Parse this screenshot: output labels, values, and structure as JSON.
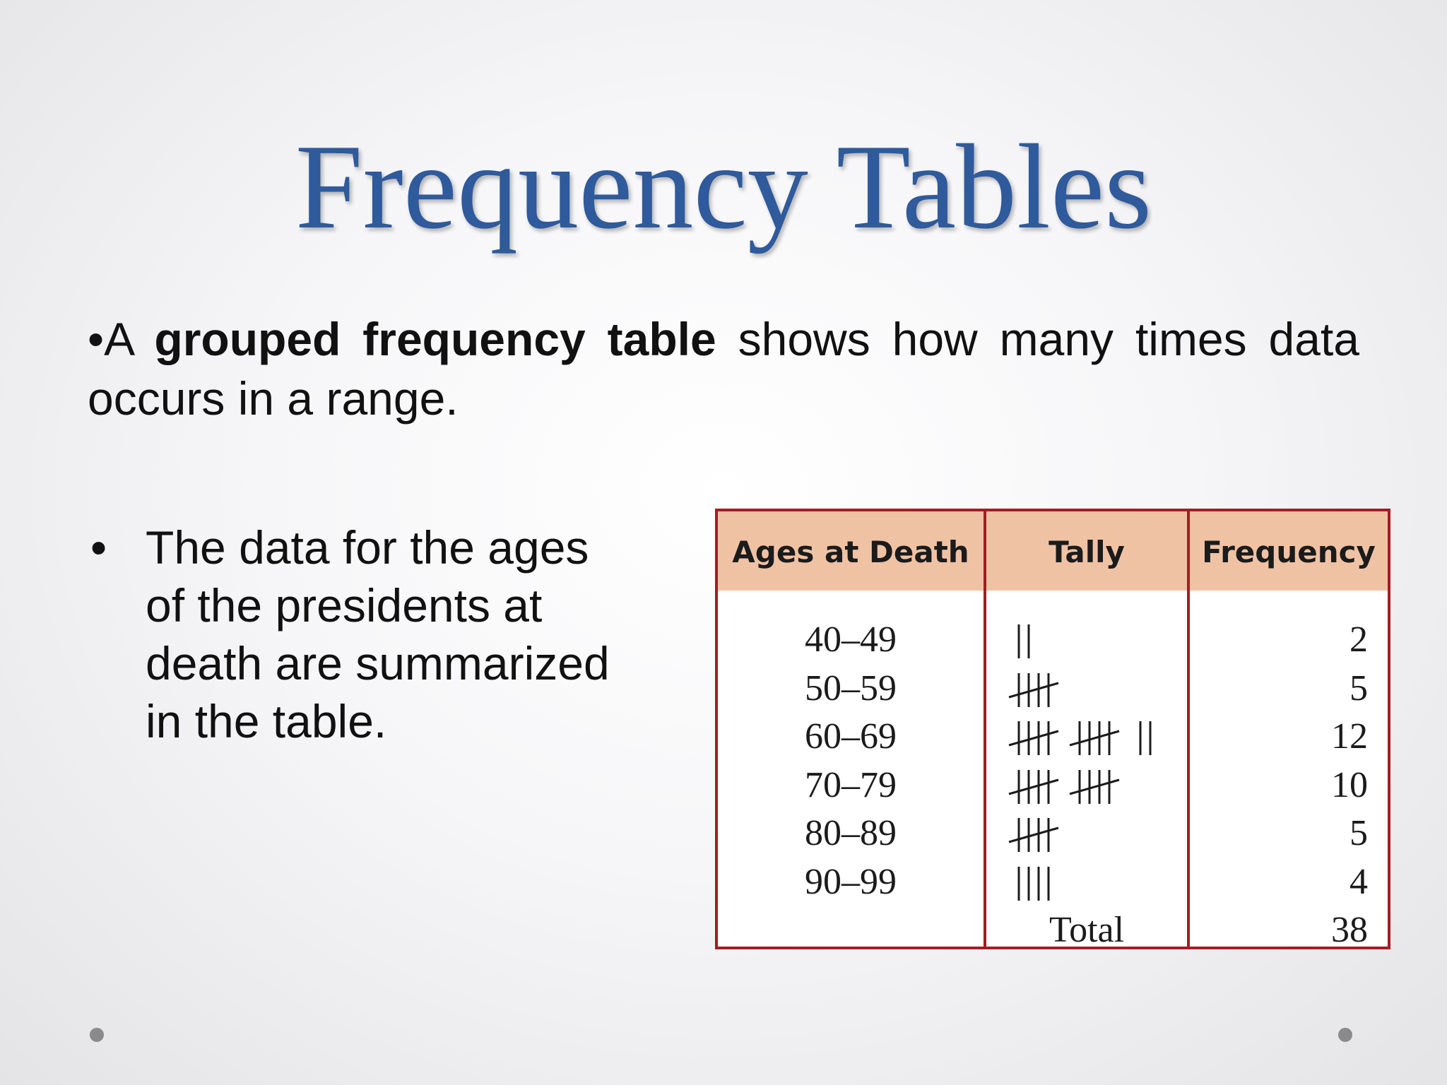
{
  "slide": {
    "title": "Frequency Tables",
    "intro": {
      "bullet": "•",
      "prefix": "A ",
      "term": "grouped frequency table",
      "rest": " shows how many times data occurs in a range."
    },
    "point": {
      "bullet": "•",
      "text": "The data for the ages of the presidents at death are summarized in the table."
    }
  },
  "table": {
    "headers": [
      "Ages at Death",
      "Tally",
      "Frequency"
    ],
    "rows": [
      {
        "range": "40–49",
        "tally": 2,
        "frequency": "2"
      },
      {
        "range": "50–59",
        "tally": 5,
        "frequency": "5"
      },
      {
        "range": "60–69",
        "tally": 12,
        "frequency": "12"
      },
      {
        "range": "70–79",
        "tally": 10,
        "frequency": "10"
      },
      {
        "range": "80–89",
        "tally": 5,
        "frequency": "5"
      },
      {
        "range": "90–99",
        "tally": 4,
        "frequency": "4"
      }
    ],
    "total_label": "Total",
    "total_value": "38"
  },
  "colors": {
    "title": "#2f5a9b",
    "table_border": "#a31d24",
    "header_fill": "#f0c2a4"
  }
}
